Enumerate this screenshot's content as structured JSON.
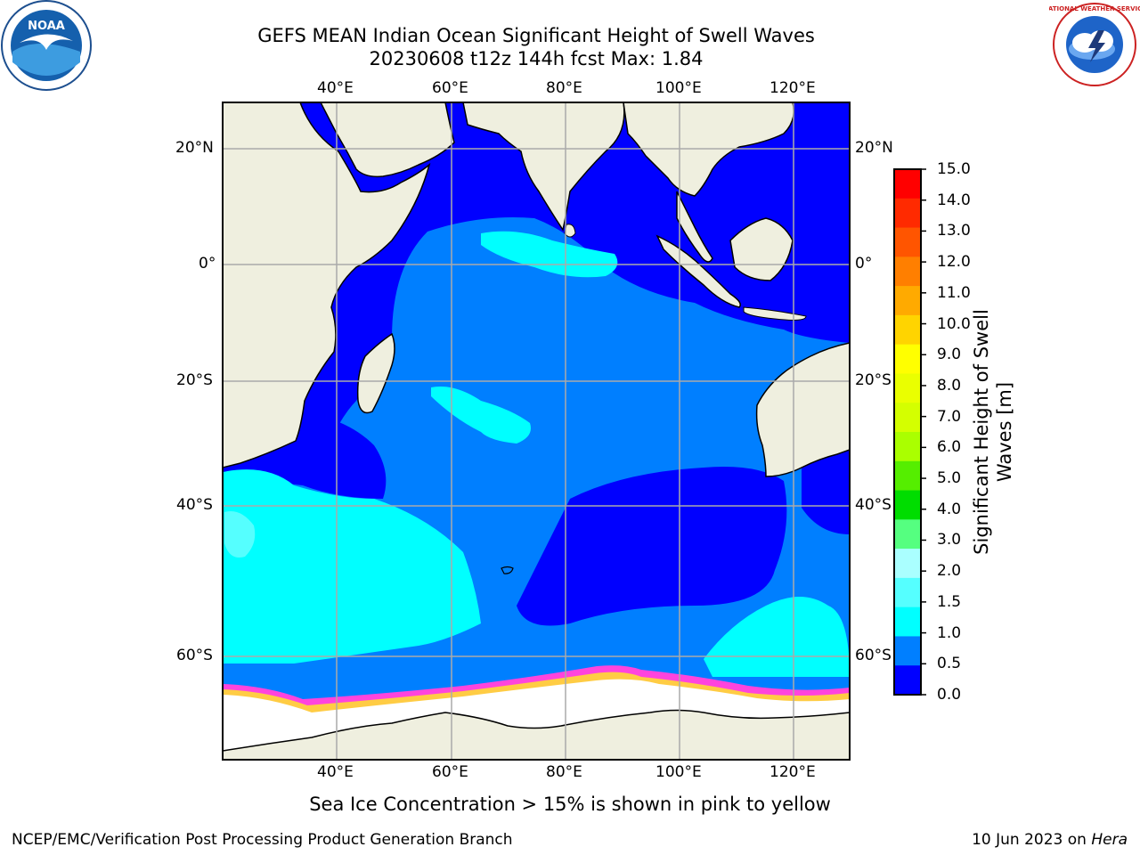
{
  "title_line1": "GEFS MEAN Indian Ocean Significant Height of Swell Waves",
  "title_line2": "20230608 t12z 144h fcst   Max: 1.84",
  "lon_labels": [
    "40°E",
    "60°E",
    "80°E",
    "100°E",
    "120°E"
  ],
  "lat_labels": [
    "20°N",
    "0°",
    "20°S",
    "40°S",
    "60°S"
  ],
  "colorbar": {
    "title": "Significant Height of Swell Waves [m]",
    "ticks": [
      "15.0",
      "14.0",
      "13.0",
      "12.0",
      "11.0",
      "10.0",
      "9.0",
      "8.0",
      "7.0",
      "6.0",
      "5.0",
      "4.0",
      "3.0",
      "2.0",
      "1.5",
      "1.0",
      "0.5",
      "0.0"
    ],
    "colors": [
      "#ff0000",
      "#ff2a00",
      "#ff5500",
      "#ff7f00",
      "#ffaa00",
      "#ffd400",
      "#ffff00",
      "#eaff00",
      "#d4ff00",
      "#aaff00",
      "#55ee00",
      "#00dd00",
      "#55ff80",
      "#aaffff",
      "#55ffff",
      "#00ffff",
      "#007fff",
      "#0000ff"
    ]
  },
  "map_colors": {
    "land": "#efefdf",
    "ice": "#ffffff",
    "c05": "#0000ff",
    "c10": "#007fff",
    "c15": "#00ffff",
    "c20": "#55ffff",
    "ice_pink": "#ff44dd",
    "ice_yellow": "#ffcc44"
  },
  "note": "Sea Ice Concentration > 15% is shown in pink to yellow",
  "credit": "NCEP/EMC/Verification Post Processing Product Generation Branch",
  "date_text": "10 Jun 2023 on ",
  "date_machine": "Hera",
  "logos": {
    "noaa_text": "NOAA",
    "nws_text": "NATIONAL WEATHER SERVICE"
  }
}
